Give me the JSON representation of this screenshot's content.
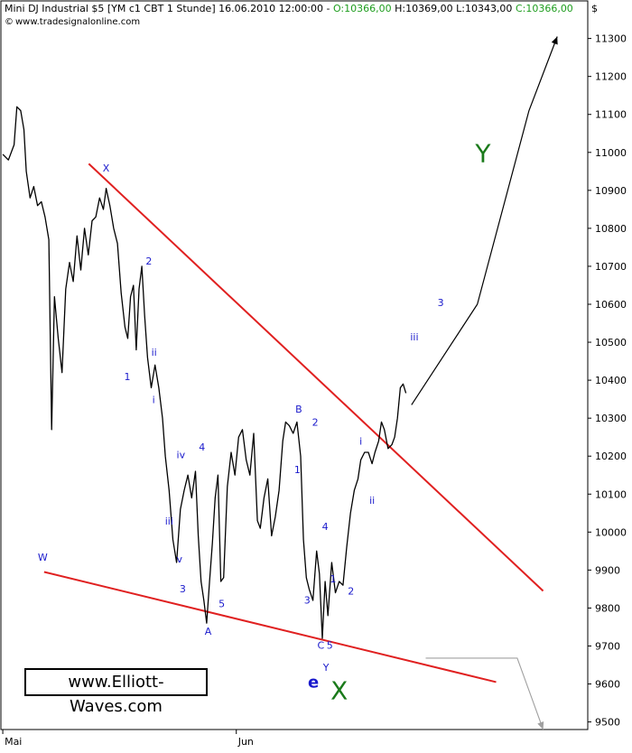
{
  "header": {
    "instrument": "Mini DJ Industrial $5 [YM c1 CBT  1 Stunde] 16.06.2010 12:00:00 - ",
    "open": "O:10366,00",
    "high": "H:10369,00",
    "low": "L:10343,00",
    "close": "C:10366,00",
    "source": "www.tradesignalonline.com",
    "currency": "$"
  },
  "brand_box": "www.Elliott-Waves.com",
  "colors": {
    "price": "#000000",
    "trendline": "#e02020",
    "wave_label": "#1a1acc",
    "major_label": "#1a7a1a",
    "projection": "#000000",
    "projection_alt": "#a0a0a0",
    "value_green": "#1e9d1e"
  },
  "chart_data": {
    "type": "line",
    "title": "Mini DJ Industrial $5 [YM c1 CBT  1 Stunde]",
    "y_axis": {
      "ticks": [
        9500,
        9600,
        9700,
        9800,
        9900,
        10000,
        10100,
        10200,
        10300,
        10400,
        10500,
        10600,
        10700,
        10800,
        10900,
        11000,
        11100,
        11200,
        11300
      ],
      "ylim": [
        9480,
        11330
      ],
      "position": "right"
    },
    "x_axis": {
      "ticks": [
        {
          "label": "Mai",
          "t": 0
        },
        {
          "label": "Jun",
          "t": 0.497
        }
      ],
      "tlim": [
        -0.004,
        1.245
      ]
    },
    "series": [
      {
        "values": [
          [
            0.0,
            10995
          ],
          [
            0.012,
            10980
          ],
          [
            0.024,
            11020
          ],
          [
            0.03,
            11120
          ],
          [
            0.038,
            11110
          ],
          [
            0.045,
            11060
          ],
          [
            0.05,
            10950
          ],
          [
            0.058,
            10880
          ],
          [
            0.066,
            10910
          ],
          [
            0.074,
            10860
          ],
          [
            0.082,
            10870
          ],
          [
            0.09,
            10830
          ],
          [
            0.098,
            10770
          ],
          [
            0.104,
            10270
          ],
          [
            0.11,
            10620
          ],
          [
            0.118,
            10510
          ],
          [
            0.126,
            10420
          ],
          [
            0.134,
            10640
          ],
          [
            0.142,
            10710
          ],
          [
            0.15,
            10660
          ],
          [
            0.158,
            10780
          ],
          [
            0.166,
            10690
          ],
          [
            0.174,
            10800
          ],
          [
            0.182,
            10730
          ],
          [
            0.19,
            10820
          ],
          [
            0.198,
            10830
          ],
          [
            0.206,
            10880
          ],
          [
            0.214,
            10850
          ],
          [
            0.22,
            10905
          ],
          [
            0.228,
            10860
          ],
          [
            0.236,
            10800
          ],
          [
            0.244,
            10760
          ],
          [
            0.252,
            10630
          ],
          [
            0.26,
            10540
          ],
          [
            0.266,
            10510
          ],
          [
            0.272,
            10620
          ],
          [
            0.278,
            10650
          ],
          [
            0.284,
            10480
          ],
          [
            0.29,
            10640
          ],
          [
            0.296,
            10700
          ],
          [
            0.302,
            10570
          ],
          [
            0.308,
            10460
          ],
          [
            0.316,
            10380
          ],
          [
            0.324,
            10440
          ],
          [
            0.332,
            10380
          ],
          [
            0.34,
            10300
          ],
          [
            0.346,
            10200
          ],
          [
            0.354,
            10110
          ],
          [
            0.362,
            9980
          ],
          [
            0.37,
            9920
          ],
          [
            0.378,
            10060
          ],
          [
            0.386,
            10110
          ],
          [
            0.394,
            10150
          ],
          [
            0.402,
            10090
          ],
          [
            0.41,
            10160
          ],
          [
            0.416,
            9990
          ],
          [
            0.422,
            9870
          ],
          [
            0.428,
            9820
          ],
          [
            0.434,
            9760
          ],
          [
            0.44,
            9870
          ],
          [
            0.446,
            9970
          ],
          [
            0.452,
            10090
          ],
          [
            0.458,
            10150
          ],
          [
            0.464,
            9870
          ],
          [
            0.47,
            9880
          ],
          [
            0.478,
            10120
          ],
          [
            0.486,
            10210
          ],
          [
            0.494,
            10150
          ],
          [
            0.502,
            10250
          ],
          [
            0.51,
            10270
          ],
          [
            0.518,
            10190
          ],
          [
            0.526,
            10150
          ],
          [
            0.534,
            10260
          ],
          [
            0.542,
            10030
          ],
          [
            0.548,
            10010
          ],
          [
            0.556,
            10090
          ],
          [
            0.564,
            10140
          ],
          [
            0.572,
            9990
          ],
          [
            0.58,
            10040
          ],
          [
            0.588,
            10110
          ],
          [
            0.596,
            10240
          ],
          [
            0.602,
            10290
          ],
          [
            0.61,
            10280
          ],
          [
            0.618,
            10260
          ],
          [
            0.626,
            10290
          ],
          [
            0.634,
            10200
          ],
          [
            0.64,
            9980
          ],
          [
            0.646,
            9880
          ],
          [
            0.652,
            9850
          ],
          [
            0.66,
            9820
          ],
          [
            0.668,
            9950
          ],
          [
            0.674,
            9890
          ],
          [
            0.68,
            9720
          ],
          [
            0.686,
            9870
          ],
          [
            0.692,
            9780
          ],
          [
            0.7,
            9920
          ],
          [
            0.708,
            9840
          ],
          [
            0.716,
            9870
          ],
          [
            0.724,
            9860
          ],
          [
            0.732,
            9960
          ],
          [
            0.74,
            10050
          ],
          [
            0.748,
            10110
          ],
          [
            0.756,
            10140
          ],
          [
            0.762,
            10190
          ],
          [
            0.77,
            10210
          ],
          [
            0.778,
            10210
          ],
          [
            0.786,
            10180
          ],
          [
            0.792,
            10210
          ],
          [
            0.8,
            10240
          ],
          [
            0.806,
            10290
          ],
          [
            0.812,
            10270
          ],
          [
            0.82,
            10220
          ],
          [
            0.828,
            10230
          ],
          [
            0.834,
            10250
          ],
          [
            0.84,
            10300
          ],
          [
            0.846,
            10380
          ],
          [
            0.852,
            10390
          ],
          [
            0.858,
            10366
          ]
        ]
      }
    ],
    "trendlines": [
      {
        "points": [
          [
            0.183,
            10970
          ],
          [
            1.15,
            9845
          ]
        ]
      },
      {
        "points": [
          [
            0.088,
            9895
          ],
          [
            1.05,
            9605
          ]
        ]
      }
    ],
    "projections": [
      {
        "points": [
          [
            0.87,
            10335
          ],
          [
            1.01,
            10600
          ],
          [
            1.12,
            11110
          ],
          [
            1.18,
            11305
          ]
        ]
      },
      {
        "points": [
          [
            0.9,
            9668
          ],
          [
            1.095,
            9668
          ],
          [
            1.15,
            9480
          ]
        ]
      }
    ],
    "wave_labels": [
      {
        "text": "X",
        "t": 0.22,
        "v": 10950,
        "class": "minor"
      },
      {
        "text": "2",
        "t": 0.311,
        "v": 10705,
        "class": "minor"
      },
      {
        "text": "ii",
        "t": 0.322,
        "v": 10465,
        "class": "minor"
      },
      {
        "text": "1",
        "t": 0.265,
        "v": 10400,
        "class": "minor"
      },
      {
        "text": "i",
        "t": 0.321,
        "v": 10340,
        "class": "minor"
      },
      {
        "text": "iv",
        "t": 0.379,
        "v": 10195,
        "class": "minor"
      },
      {
        "text": "4",
        "t": 0.424,
        "v": 10215,
        "class": "minor"
      },
      {
        "text": "iii",
        "t": 0.354,
        "v": 10020,
        "class": "minor"
      },
      {
        "text": "v",
        "t": 0.376,
        "v": 9920,
        "class": "minor"
      },
      {
        "text": "3",
        "t": 0.383,
        "v": 9842,
        "class": "minor"
      },
      {
        "text": "5",
        "t": 0.466,
        "v": 9802,
        "class": "minor"
      },
      {
        "text": "A",
        "t": 0.437,
        "v": 9730,
        "class": "minor"
      },
      {
        "text": "W",
        "t": 0.085,
        "v": 9925,
        "class": "minor"
      },
      {
        "text": "B",
        "t": 0.63,
        "v": 10315,
        "class": "minor"
      },
      {
        "text": "2",
        "t": 0.665,
        "v": 10280,
        "class": "minor"
      },
      {
        "text": "1",
        "t": 0.627,
        "v": 10155,
        "class": "minor"
      },
      {
        "text": "4",
        "t": 0.686,
        "v": 10005,
        "class": "minor"
      },
      {
        "text": "1",
        "t": 0.703,
        "v": 9868,
        "class": "minor"
      },
      {
        "text": "3",
        "t": 0.648,
        "v": 9812,
        "class": "minor"
      },
      {
        "text": "2",
        "t": 0.741,
        "v": 9835,
        "class": "minor"
      },
      {
        "text": "C",
        "t": 0.677,
        "v": 9693,
        "class": "minor"
      },
      {
        "text": "5",
        "t": 0.696,
        "v": 9693,
        "class": "minor"
      },
      {
        "text": "Y",
        "t": 0.688,
        "v": 9635,
        "class": "minor"
      },
      {
        "text": "i",
        "t": 0.762,
        "v": 10230,
        "class": "minor"
      },
      {
        "text": "ii",
        "t": 0.786,
        "v": 10075,
        "class": "minor"
      },
      {
        "text": "iii",
        "t": 0.876,
        "v": 10505,
        "class": "minor"
      },
      {
        "text": "3",
        "t": 0.932,
        "v": 10595,
        "class": "minor"
      },
      {
        "text": "e",
        "t": 0.661,
        "v": 9590,
        "class": "wave-e"
      },
      {
        "text": "X",
        "t": 0.716,
        "v": 9560,
        "class": "major"
      },
      {
        "text": "Y",
        "t": 1.022,
        "v": 10975,
        "class": "major"
      }
    ]
  }
}
